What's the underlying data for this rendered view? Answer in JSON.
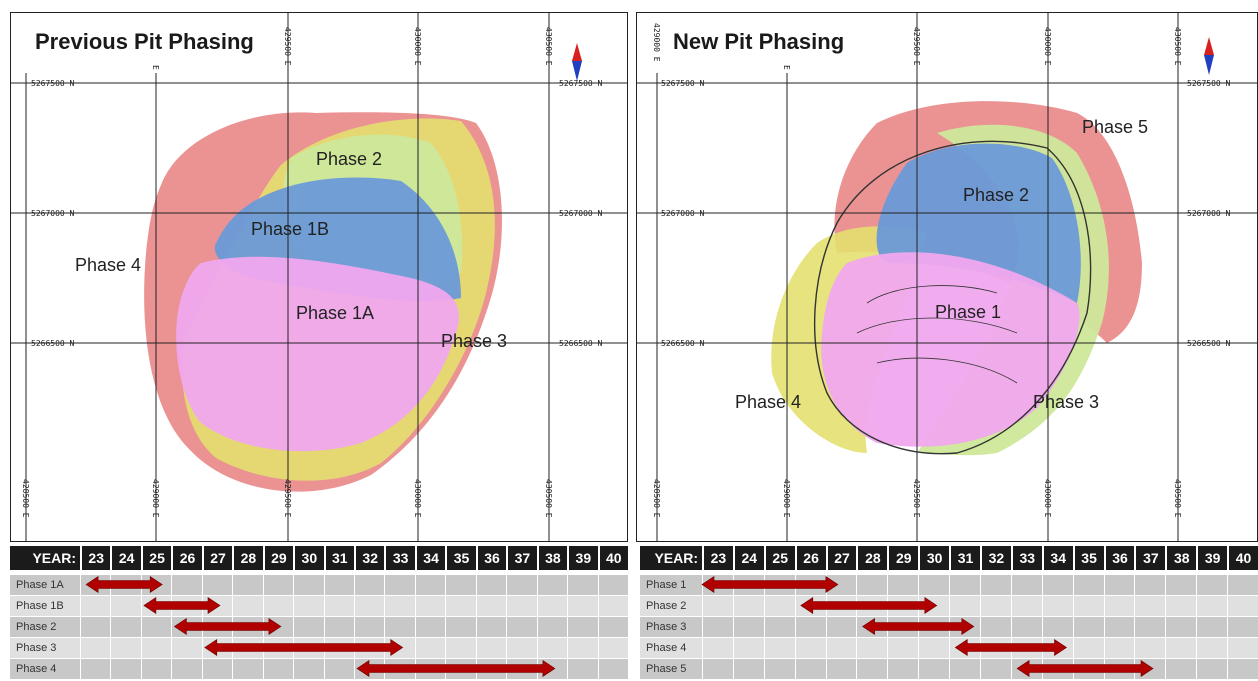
{
  "left_map": {
    "title": "Previous Pit Phasing",
    "phases": [
      "Phase 2",
      "Phase 1B",
      "Phase 4",
      "Phase 1A",
      "Phase 3"
    ],
    "northings": [
      "5267500 N",
      "5267000 N",
      "5266500 N"
    ],
    "eastings": [
      "428500 E",
      "429000 E",
      "429500 E",
      "430000 E",
      "430500 E"
    ],
    "top_eastings": [
      "E",
      "429500 E",
      "430000 E",
      "430500 E"
    ]
  },
  "right_map": {
    "title": "New Pit Phasing",
    "phases": [
      "Phase 5",
      "Phase 2",
      "Phase 1",
      "Phase 4",
      "Phase 3"
    ],
    "northings": [
      "5267500 N",
      "5267000 N",
      "5266500 N"
    ],
    "eastings": [
      "428500 E",
      "429000 E",
      "429500 E",
      "430000 E",
      "430500 E"
    ],
    "top_eastings": [
      "429000 E",
      "E",
      "429500 E",
      "430000 E",
      "430500 E"
    ]
  },
  "schedule_left": {
    "year_label": "YEAR:",
    "years": [
      "23",
      "24",
      "25",
      "26",
      "27",
      "28",
      "29",
      "30",
      "31",
      "32",
      "33",
      "34",
      "35",
      "36",
      "37",
      "38",
      "39",
      "40"
    ],
    "rows": [
      {
        "label": "Phase 1A",
        "start": 23.2,
        "end": 25.7
      },
      {
        "label": "Phase 1B",
        "start": 25.1,
        "end": 27.6
      },
      {
        "label": "Phase 2",
        "start": 26.1,
        "end": 29.6
      },
      {
        "label": "Phase 3",
        "start": 27.1,
        "end": 33.6
      },
      {
        "label": "Phase 4",
        "start": 32.1,
        "end": 38.6
      }
    ]
  },
  "schedule_right": {
    "year_label": "YEAR:",
    "years": [
      "23",
      "24",
      "25",
      "26",
      "27",
      "28",
      "29",
      "30",
      "31",
      "32",
      "33",
      "34",
      "35",
      "36",
      "37",
      "38",
      "39",
      "40"
    ],
    "rows": [
      {
        "label": "Phase 1",
        "start": 23.0,
        "end": 27.4
      },
      {
        "label": "Phase 2",
        "start": 26.2,
        "end": 30.6
      },
      {
        "label": "Phase 3",
        "start": 28.2,
        "end": 31.8
      },
      {
        "label": "Phase 4",
        "start": 31.2,
        "end": 34.8
      },
      {
        "label": "Phase 5",
        "start": 33.2,
        "end": 37.6
      }
    ]
  },
  "colors": {
    "phase_red": "#e88080",
    "phase_blue": "#6a9ad8",
    "phase_pink": "#f0a8ee",
    "phase_yellow": "#e4e070",
    "phase_green": "#cde89a",
    "arrow": "#b00000",
    "header_bg": "#1b1b1b",
    "row_odd": "#c8c8c8",
    "row_even": "#e0e0e0"
  },
  "icons": [
    "north-arrow-icon"
  ]
}
